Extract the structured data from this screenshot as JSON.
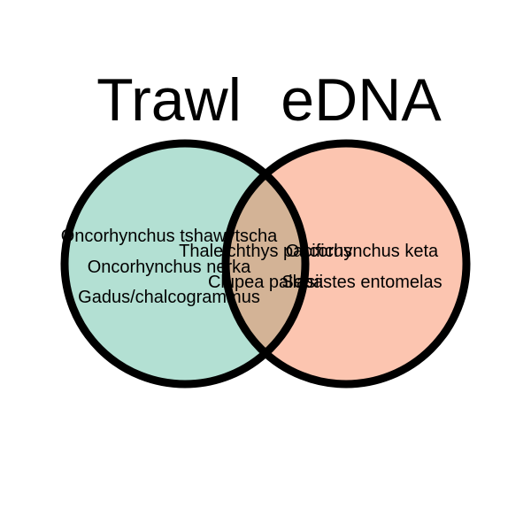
{
  "sets": [
    {
      "name": "Trawl",
      "color": "#b3e0d3"
    },
    {
      "name": "eDNA",
      "color": "#fcc5b0"
    }
  ],
  "overlap_color": "#d3b396",
  "outline_color": "#000000",
  "regions": {
    "trawl_only": [
      "Oncorhynchus tshawytscha",
      "Oncorhynchus nerka",
      "Gadus/chalcogrammus"
    ],
    "both": [
      "Thaleichthys pacificus",
      "Clupea pallasii"
    ],
    "edna_only": [
      "Oncorhynchus keta",
      "Sebastes entomelas"
    ]
  }
}
